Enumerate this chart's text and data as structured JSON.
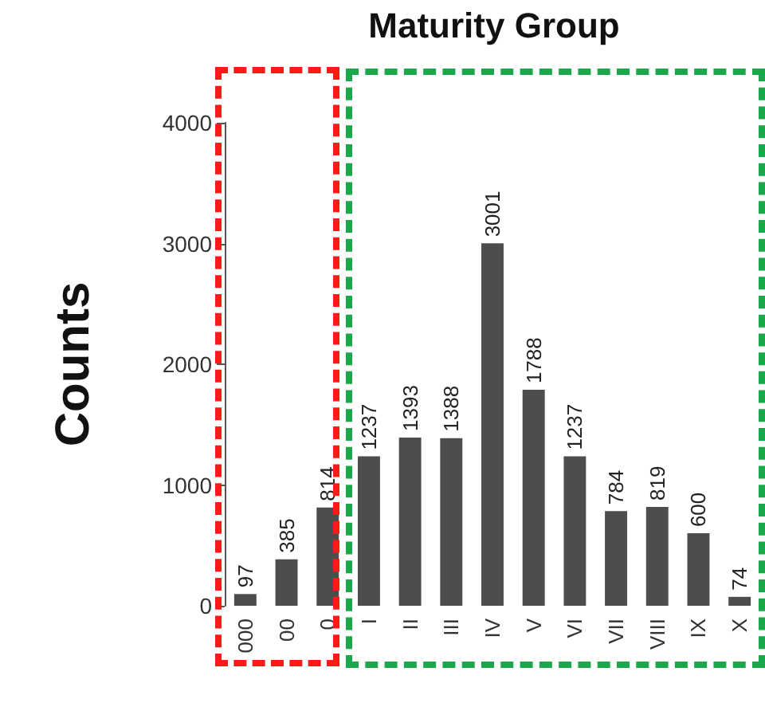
{
  "chart_data": {
    "type": "bar",
    "title": "Maturity Group",
    "ylabel": "Counts",
    "categories": [
      "000",
      "00",
      "0",
      "I",
      "II",
      "III",
      "IV",
      "V",
      "VI",
      "VII",
      "VIII",
      "IX",
      "X"
    ],
    "values": [
      97,
      385,
      814,
      1237,
      1393,
      1388,
      3001,
      1788,
      1237,
      784,
      819,
      600,
      74
    ],
    "color": "#4d4d4d",
    "ylim": [
      0,
      4000
    ],
    "yticks": [
      0,
      1000,
      2000,
      3000,
      4000
    ],
    "grid": false,
    "data_labels": true
  }
}
